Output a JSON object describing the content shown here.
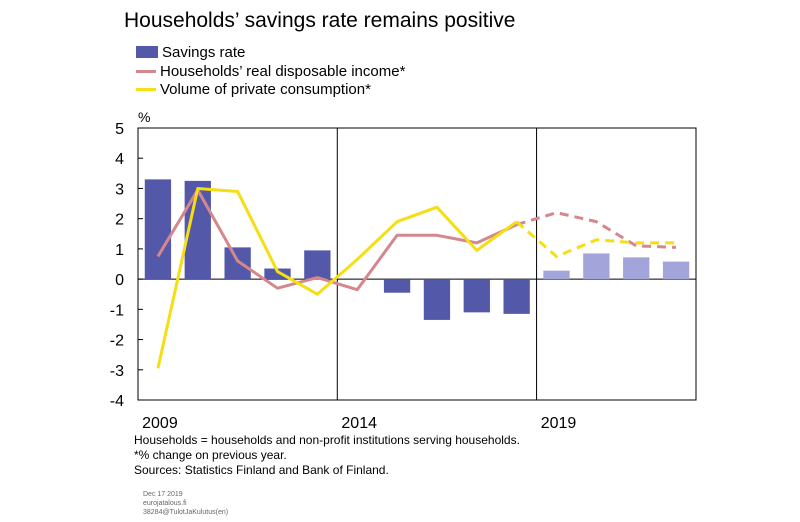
{
  "chart_data": {
    "type": "bar",
    "title": "Households’ savings rate remains positive",
    "y_unit_label": "%",
    "ylim": [
      -4,
      5
    ],
    "yticks": [
      5,
      4,
      3,
      2,
      1,
      0,
      -1,
      -2,
      -3,
      -4
    ],
    "x_tick_labels": [
      "2009",
      "2014",
      "2019"
    ],
    "x": [
      2009,
      2010,
      2011,
      2012,
      2013,
      2014,
      2015,
      2016,
      2017,
      2018,
      2019,
      2020,
      2021,
      2022
    ],
    "grid": "vertical lines at 2014 and 2019 boundaries",
    "legend_placement": "top-left",
    "forecast_from": 2019,
    "series": [
      {
        "name": "Savings rate",
        "kind": "bar",
        "color": "#5458a8",
        "forecast_color": "#a3a5da",
        "values": [
          3.3,
          3.25,
          1.05,
          0.35,
          0.95,
          null,
          -0.45,
          -1.35,
          -1.1,
          -1.15,
          0.28,
          0.85,
          0.72,
          0.58
        ]
      },
      {
        "name": "Households’ real disposable income*",
        "kind": "line",
        "color": "#d4878d",
        "values": [
          0.75,
          2.95,
          0.6,
          -0.3,
          0.05,
          -0.35,
          1.45,
          1.45,
          1.2,
          1.8,
          2.2,
          1.9,
          1.1,
          1.05
        ]
      },
      {
        "name": "Volume of private consumption*",
        "kind": "line",
        "color": "#f5de12",
        "values": [
          -2.95,
          3.0,
          2.9,
          0.25,
          -0.5,
          0.65,
          1.9,
          2.38,
          0.95,
          1.9,
          0.75,
          1.3,
          1.2,
          1.2
        ]
      }
    ]
  },
  "notes": [
    "Households = households and non-profit institutions serving households.",
    "*% change on previous year.",
    "Sources: Statistics Finland and Bank of Finland."
  ],
  "meta": [
    "Dec 17 2019",
    "eurojatalous.fi",
    "38284@TulotJaKulutus(en)"
  ]
}
